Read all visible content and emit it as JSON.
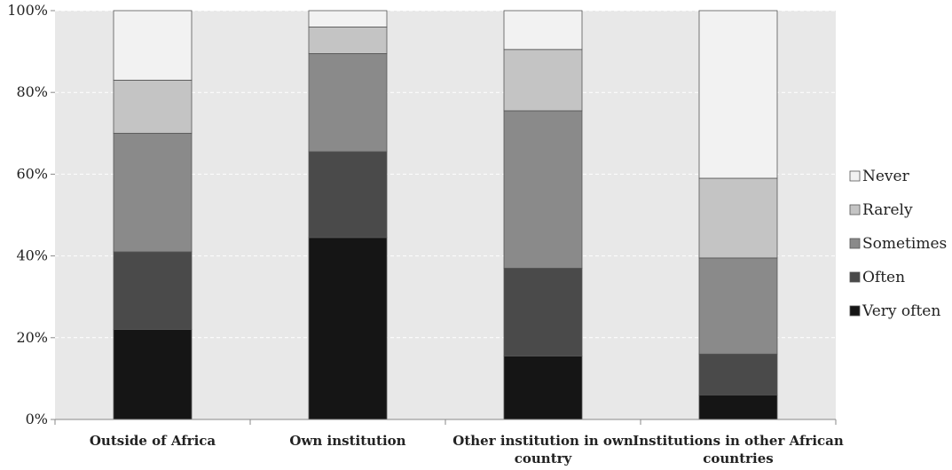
{
  "chart_data": {
    "type": "bar",
    "stacked": true,
    "categories": [
      "Outside of Africa",
      "Own institution",
      "Other institution in own country",
      "Institutions in other African countries"
    ],
    "category_lines": [
      [
        "Outside of Africa"
      ],
      [
        "Own institution"
      ],
      [
        "Other institution in own",
        "country"
      ],
      [
        "Institutions in other African",
        "countries"
      ]
    ],
    "series": [
      {
        "name": "Very often",
        "color": "#151515",
        "values": [
          22,
          44.5,
          15.5,
          6
        ]
      },
      {
        "name": "Often",
        "color": "#4a4a4a",
        "values": [
          19,
          21,
          21.5,
          10
        ]
      },
      {
        "name": "Sometimes",
        "color": "#8a8a8a",
        "values": [
          29,
          24,
          38.5,
          23.5
        ]
      },
      {
        "name": "Rarely",
        "color": "#c4c4c4",
        "values": [
          13,
          6.5,
          15,
          19.5
        ]
      },
      {
        "name": "Never",
        "color": "#f2f2f2",
        "values": [
          17,
          4,
          9.5,
          41
        ]
      }
    ],
    "yticks": [
      "0%",
      "20%",
      "40%",
      "60%",
      "80%",
      "100%"
    ],
    "ylim": [
      0,
      100
    ],
    "grid": true,
    "legend": "right",
    "plot_background": "#e8e8e8",
    "title": "",
    "xlabel": "",
    "ylabel": ""
  }
}
